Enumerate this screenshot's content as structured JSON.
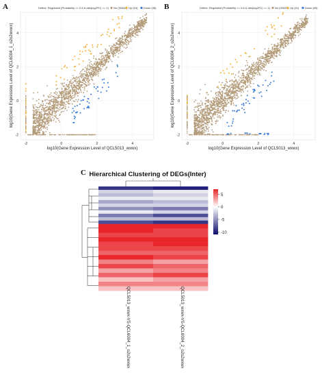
{
  "panels": {
    "a": {
      "letter": "A",
      "legend": {
        "prefix": "Define: Regulated (Probability >= 0.8 & abs(log2FC) >= 1)",
        "items": [
          {
            "label": "No (32640)",
            "color": "#b39b7a"
          },
          {
            "label": "Up (64)",
            "color": "#f0b33c"
          },
          {
            "label": "Down (48)",
            "color": "#3a7bd5"
          }
        ]
      },
      "xlabel": "log10(Gene Expression Level of QCL5013_wxwx)",
      "ylabel": "log10(Gene Expression Level of QCL6004_1_o2o2wxwx)"
    },
    "b": {
      "letter": "B",
      "legend": {
        "prefix": "Define: Regulated (Probability >= 0.8 & abs(log2FC) >= 1)",
        "items": [
          {
            "label": "No (32630)",
            "color": "#b39b7a"
          },
          {
            "label": "Up (41)",
            "color": "#f0b33c"
          },
          {
            "label": "Down (65)",
            "color": "#3a7bd5"
          }
        ]
      },
      "xlabel": "log10(Gene Expression Level of QCL5013_wxwx)",
      "ylabel": "log10(Gene Expression Level of QCL6004_2_o2o2wxwx)"
    },
    "c": {
      "letter": "C",
      "title": "Hierarchical Clustering of DEGs(Inter)",
      "col1": "QCL5013_wxwx-VS-QCL6004_1_o2o2wxwx",
      "col2": "QCL5013_wxwx-VS-QCL6004_2_o2o2wxwx"
    }
  },
  "chart_data": [
    {
      "type": "scatter",
      "panel": "A",
      "xlabel": "log10(Gene Expression Level of QCL5013_wxwx)",
      "ylabel": "log10(Gene Expression Level of QCL6004_1_o2o2wxwx)",
      "xlim": [
        -2.3,
        5.2
      ],
      "ylim": [
        -2.3,
        5.2
      ],
      "xticks": [
        -2,
        0,
        2,
        4
      ],
      "yticks": [
        -2,
        0,
        2,
        4
      ],
      "series": [
        {
          "name": "No (32640)",
          "color": "#b39b7a",
          "count": 32640
        },
        {
          "name": "Up (64)",
          "color": "#f0b33c",
          "count": 64
        },
        {
          "name": "Down (48)",
          "color": "#3a7bd5",
          "count": 48
        }
      ],
      "grid": true
    },
    {
      "type": "scatter",
      "panel": "B",
      "xlabel": "log10(Gene Expression Level of QCL5013_wxwx)",
      "ylabel": "log10(Gene Expression Level of QCL6004_2_o2o2wxwx)",
      "xlim": [
        -2.3,
        5.2
      ],
      "ylim": [
        -2.3,
        5.2
      ],
      "xticks": [
        -2,
        0,
        2,
        4
      ],
      "yticks": [
        -2,
        0,
        2,
        4
      ],
      "series": [
        {
          "name": "No (32630)",
          "color": "#b39b7a",
          "count": 32630
        },
        {
          "name": "Up (41)",
          "color": "#f0b33c",
          "count": 41
        },
        {
          "name": "Down (65)",
          "color": "#3a7bd5",
          "count": 65
        }
      ],
      "grid": true
    },
    {
      "type": "heatmap",
      "panel": "C",
      "title": "Hierarchical Clustering of DEGs(Inter)",
      "columns": [
        "QCL5013_wxwx-VS-QCL6004_1_o2o2wxwx",
        "QCL5013_wxwx-VS-QCL6004_2_o2o2wxwx"
      ],
      "colorbar": {
        "ticks": [
          5,
          0,
          -5,
          -10
        ],
        "range": [
          -11,
          7
        ],
        "colors": [
          "#0b0b6e",
          "#ffffff",
          "#e8262b"
        ]
      },
      "rows_top_block": [
        [
          -9,
          -10
        ],
        [
          -2,
          -1
        ],
        [
          -3,
          -2
        ],
        [
          -1,
          -1
        ],
        [
          -4,
          -3
        ],
        [
          -2,
          -2
        ],
        [
          -5,
          -6
        ],
        [
          -1,
          -2
        ],
        [
          -6,
          -8
        ],
        [
          -3,
          -3
        ],
        [
          -8,
          -9
        ]
      ],
      "rows_bottom_block": [
        [
          7,
          7
        ],
        [
          7,
          6
        ],
        [
          6,
          6
        ],
        [
          7,
          7
        ],
        [
          6,
          7
        ],
        [
          6,
          6
        ],
        [
          5,
          5
        ],
        [
          7,
          6
        ],
        [
          4,
          3
        ],
        [
          6,
          5
        ],
        [
          3,
          4
        ],
        [
          5,
          6
        ],
        [
          2,
          3
        ],
        [
          4,
          4
        ],
        [
          2,
          2
        ]
      ]
    }
  ]
}
